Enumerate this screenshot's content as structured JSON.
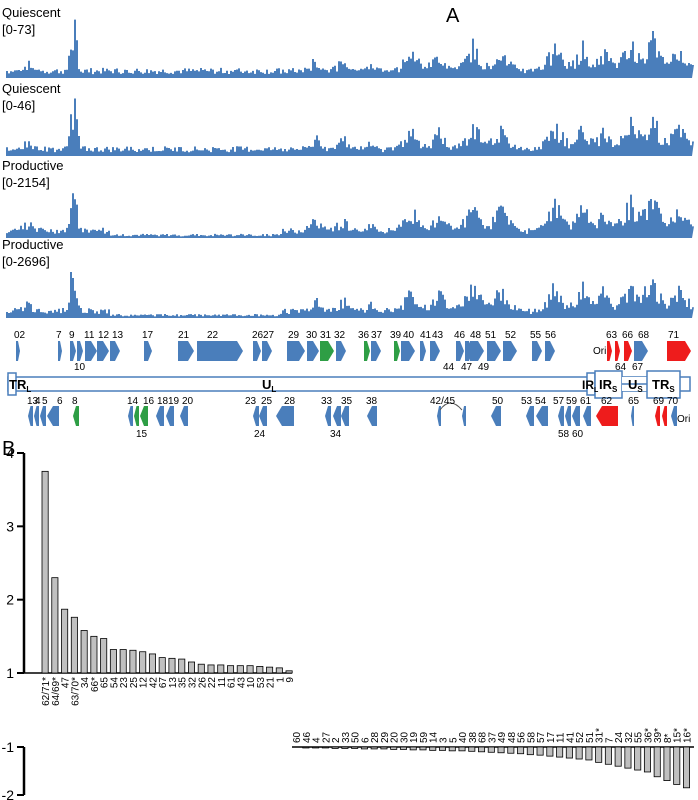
{
  "panel_a": {
    "panel_label": "A",
    "tracks": [
      {
        "label": "Quiescent",
        "range": "[0-73]"
      },
      {
        "label": "Quiescent",
        "range": "[0-46]"
      },
      {
        "label": "Productive",
        "range": "[0-2154]"
      },
      {
        "label": "Productive",
        "range": "[0-2696]"
      }
    ],
    "regions": [
      {
        "main": "TR",
        "sub": "L"
      },
      {
        "main": "U",
        "sub": "L"
      },
      {
        "main": "IR",
        "sub": "L"
      },
      {
        "main": "IR",
        "sub": "S"
      },
      {
        "main": "U",
        "sub": "S"
      },
      {
        "main": "TR",
        "sub": "S"
      }
    ],
    "ori_label": "Ori",
    "genes_top_labels": [
      "02",
      "7",
      "9",
      "11",
      "12",
      "13",
      "17",
      "21",
      "22",
      "26",
      "27",
      "29",
      "30",
      "31",
      "32",
      "36",
      "37",
      "39",
      "40",
      "41",
      "43",
      "46",
      "48",
      "51",
      "52",
      "55",
      "56",
      "63",
      "66",
      "68",
      "71"
    ],
    "genes_top_sublabels": [
      "10",
      "44",
      "47",
      "49",
      "64",
      "67"
    ],
    "genes_bottom_labels": [
      "13",
      "4",
      "5",
      "6",
      "8",
      "14",
      "16",
      "18",
      "19",
      "20",
      "23",
      "25",
      "28",
      "33",
      "35",
      "38",
      "42/45",
      "50",
      "53",
      "54",
      "57",
      "59",
      "61",
      "62",
      "65",
      "69",
      "70"
    ],
    "genes_bottom_sublabels": [
      "15",
      "24",
      "34",
      "58",
      "60"
    ],
    "colors": {
      "coverage": "#4a7ebb",
      "essential_green": "#2e9e45",
      "red": "#ee1c1c",
      "outline": "#4a7ebb"
    }
  },
  "chart_data": {
    "type": "bar",
    "panel_label": "B",
    "ylim": [
      -2,
      4
    ],
    "yticks": [
      4,
      3,
      2,
      1,
      -1,
      -2
    ],
    "axis_break": "between 1 and -1",
    "bar_color": "#c0c0c0",
    "up": {
      "categories": [
        "62/71*",
        "64/69*",
        "47",
        "63/70*",
        "34",
        "66*",
        "65",
        "54",
        "23",
        "25",
        "12",
        "42",
        "67",
        "13",
        "35",
        "32",
        "26",
        "22",
        "11",
        "61",
        "43",
        "10",
        "53",
        "21",
        "1",
        "9"
      ],
      "values": [
        3.75,
        2.3,
        1.87,
        1.76,
        1.58,
        1.5,
        1.47,
        1.32,
        1.32,
        1.31,
        1.29,
        1.26,
        1.21,
        1.2,
        1.19,
        1.15,
        1.12,
        1.11,
        1.11,
        1.1,
        1.1,
        1.1,
        1.09,
        1.08,
        1.07,
        1.03
      ]
    },
    "down": {
      "categories": [
        "60",
        "46",
        "4",
        "27",
        "2",
        "33",
        "50",
        "6",
        "28",
        "29",
        "20",
        "30",
        "19",
        "59",
        "14",
        "3",
        "5",
        "40",
        "38",
        "68",
        "37",
        "49",
        "48",
        "56",
        "58",
        "57",
        "17",
        "11",
        "41",
        "52",
        "51",
        "31*",
        "7",
        "24",
        "32",
        "55",
        "36*",
        "39*",
        "8*",
        "15*",
        "16*"
      ],
      "values": [
        -1.0,
        -1.02,
        -1.02,
        -1.02,
        -1.03,
        -1.03,
        -1.03,
        -1.04,
        -1.04,
        -1.04,
        -1.05,
        -1.05,
        -1.06,
        -1.06,
        -1.07,
        -1.07,
        -1.08,
        -1.08,
        -1.09,
        -1.1,
        -1.11,
        -1.12,
        -1.13,
        -1.14,
        -1.16,
        -1.17,
        -1.19,
        -1.21,
        -1.23,
        -1.25,
        -1.27,
        -1.32,
        -1.36,
        -1.4,
        -1.44,
        -1.48,
        -1.52,
        -1.62,
        -1.7,
        -1.78,
        -1.85
      ]
    }
  }
}
